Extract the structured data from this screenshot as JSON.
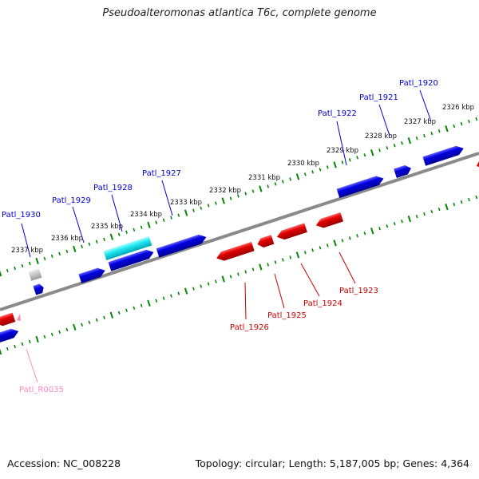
{
  "title": "Pseudoalteromonas atlantica T6c, complete genome",
  "footer": {
    "accession": "Accession: NC_008228",
    "summary": "Topology: circular; Length: 5,187,005 bp; Genes: 4,364"
  },
  "colors": {
    "forward_gene": "#0000dd",
    "reverse_gene": "#dd0000",
    "forward_label": "#0000cc",
    "reverse_label": "#cc0000",
    "rna_label": "#ff88bb",
    "tick": "#008800",
    "backbone": "#777777"
  },
  "position_labels": [
    "2337 kbp",
    "2336 kbp",
    "2335 kbp",
    "2334 kbp",
    "2333 kbp",
    "2332 kbp",
    "2331 kbp",
    "2330 kbp",
    "2329 kbp",
    "2328 kbp",
    "2327 kbp",
    "2326 kbp"
  ],
  "top_gene_labels": [
    "Patl_1930",
    "Patl_1929",
    "Patl_1928",
    "Patl_1927",
    "Patl_1922",
    "Patl_1921",
    "Patl_1920"
  ],
  "bottom_gene_labels": [
    "Patl_1926",
    "Patl_1925",
    "Patl_1924",
    "Patl_1923"
  ],
  "rna_labels": [
    "Patl_R0035"
  ]
}
